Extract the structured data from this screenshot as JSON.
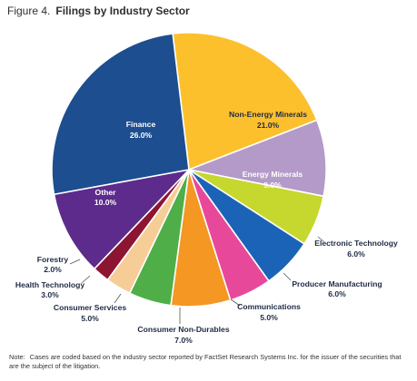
{
  "figure": {
    "number": "Figure 4.",
    "title": "Filings by Industry Sector"
  },
  "note": {
    "prefix": "Note:",
    "text": "Cases are coded based on the industry sector reported by FactSet Research Systems Inc. for the issuer of the securities that are the subject of the litigation."
  },
  "chart_data": {
    "type": "pie",
    "title": "Filings by Industry Sector",
    "start_angle_deg": -6.8,
    "direction": "clockwise",
    "slices": [
      {
        "name": "Non-Energy Minerals",
        "value": 21.0,
        "label": "21.0%",
        "color": "#fcc02d",
        "label_placement": "inside",
        "label_color": "#1e2a44"
      },
      {
        "name": "Energy Minerals",
        "value": 9.0,
        "label": "9.0%",
        "color": "#b49ac8",
        "label_placement": "inside",
        "label_color": "#ffffff"
      },
      {
        "name": "Electronic Technology",
        "value": 6.0,
        "label": "6.0%",
        "color": "#c6d72e",
        "label_placement": "outside",
        "label_color": "#1e2a44"
      },
      {
        "name": "Producer Manufacturing",
        "value": 6.0,
        "label": "6.0%",
        "color": "#1b63b6",
        "label_placement": "outside",
        "label_color": "#1e2a44"
      },
      {
        "name": "Communications",
        "value": 5.0,
        "label": "5.0%",
        "color": "#e8489a",
        "label_placement": "outside",
        "label_color": "#1e2a44"
      },
      {
        "name": "Consumer Non-Durables",
        "value": 7.0,
        "label": "7.0%",
        "color": "#f49723",
        "label_placement": "outside",
        "label_color": "#1e2a44"
      },
      {
        "name": "Consumer Services",
        "value": 5.0,
        "label": "5.0%",
        "color": "#4fae48",
        "label_placement": "outside",
        "label_color": "#1e2a44"
      },
      {
        "name": "Health Technology",
        "value": 3.0,
        "label": "3.0%",
        "color": "#f6cd96",
        "label_placement": "outside",
        "label_color": "#1e2a44"
      },
      {
        "name": "Forestry",
        "value": 2.0,
        "label": "2.0%",
        "color": "#8c1532",
        "label_placement": "outside",
        "label_color": "#1e2a44"
      },
      {
        "name": "Other",
        "value": 10.0,
        "label": "10.0%",
        "color": "#5c2b8c",
        "label_placement": "inside",
        "label_color": "#ffffff"
      },
      {
        "name": "Finance",
        "value": 26.0,
        "label": "26.0%",
        "color": "#1d4e8f",
        "label_placement": "inside",
        "label_color": "#ffffff"
      }
    ]
  }
}
